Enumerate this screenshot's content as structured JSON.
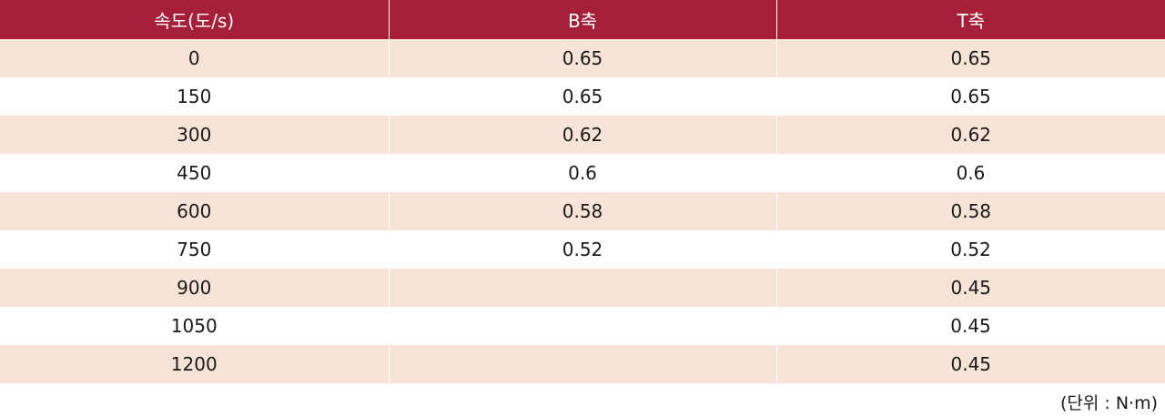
{
  "table": {
    "headers": [
      "속도(도/s)",
      "B축",
      "T축"
    ],
    "rows": [
      [
        "0",
        "0.65",
        "0.65"
      ],
      [
        "150",
        "0.65",
        "0.65"
      ],
      [
        "300",
        "0.62",
        "0.62"
      ],
      [
        "450",
        "0.6",
        "0.6"
      ],
      [
        "600",
        "0.58",
        "0.58"
      ],
      [
        "750",
        "0.52",
        "0.52"
      ],
      [
        "900",
        "",
        "0.45"
      ],
      [
        "1050",
        "",
        "0.45"
      ],
      [
        "1200",
        "",
        "0.45"
      ]
    ]
  },
  "unit_note": "(단위 : N·m)",
  "colors": {
    "header_bg": "#a51f38",
    "row_alt_bg": "#f7e3d7"
  }
}
